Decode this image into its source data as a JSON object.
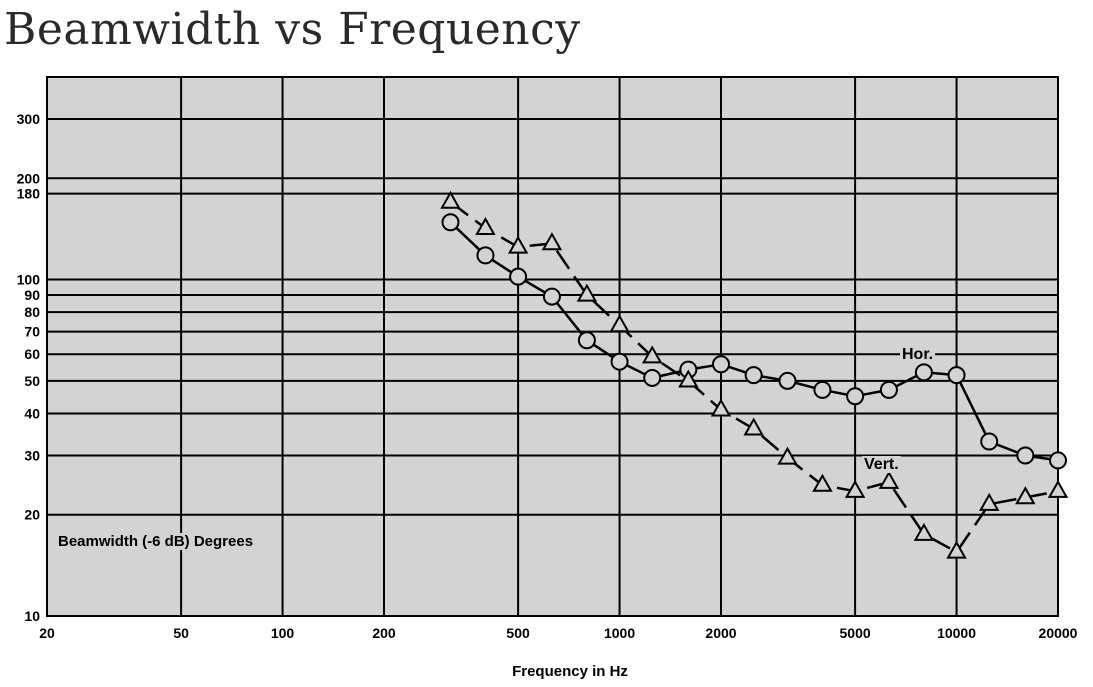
{
  "page": {
    "title": "Beamwidth vs Frequency"
  },
  "chart_data": {
    "type": "line",
    "title": "Beamwidth vs Frequency",
    "xlabel": "Frequency in Hz",
    "ylabel": "Beamwidth (-6 dB) Degrees",
    "xscale": "log",
    "yscale": "log",
    "xlim": [
      20,
      20000
    ],
    "ylim": [
      10,
      400
    ],
    "grid": true,
    "background": "#d3d3d3",
    "x_ticks": [
      20,
      50,
      100,
      200,
      500,
      1000,
      2000,
      5000,
      10000,
      20000
    ],
    "y_ticks": [
      10,
      20,
      30,
      40,
      50,
      60,
      70,
      80,
      90,
      100,
      180,
      200,
      300
    ],
    "series": [
      {
        "name": "Hor.",
        "marker": "circle",
        "linestyle": "solid",
        "x": [
          315,
          400,
          500,
          630,
          800,
          1000,
          1250,
          1600,
          2000,
          2500,
          3150,
          4000,
          5000,
          6300,
          8000,
          10000,
          12500,
          16000,
          20000
        ],
        "y": [
          148,
          118,
          102,
          89,
          66,
          57,
          51,
          54,
          56,
          52,
          50,
          47,
          45,
          47,
          53,
          52,
          33,
          30,
          29
        ]
      },
      {
        "name": "Vert.",
        "marker": "triangle",
        "linestyle": "dashed",
        "x": [
          315,
          400,
          500,
          630,
          800,
          1000,
          1250,
          1600,
          2000,
          2500,
          3150,
          4000,
          5000,
          6300,
          8000,
          10000,
          12500,
          16000,
          20000
        ],
        "y": [
          170,
          142,
          125,
          128,
          90,
          73,
          59,
          50,
          41,
          36,
          29.5,
          24.5,
          23.5,
          25,
          17.5,
          15.5,
          21.5,
          22.5,
          23.5
        ]
      }
    ]
  }
}
